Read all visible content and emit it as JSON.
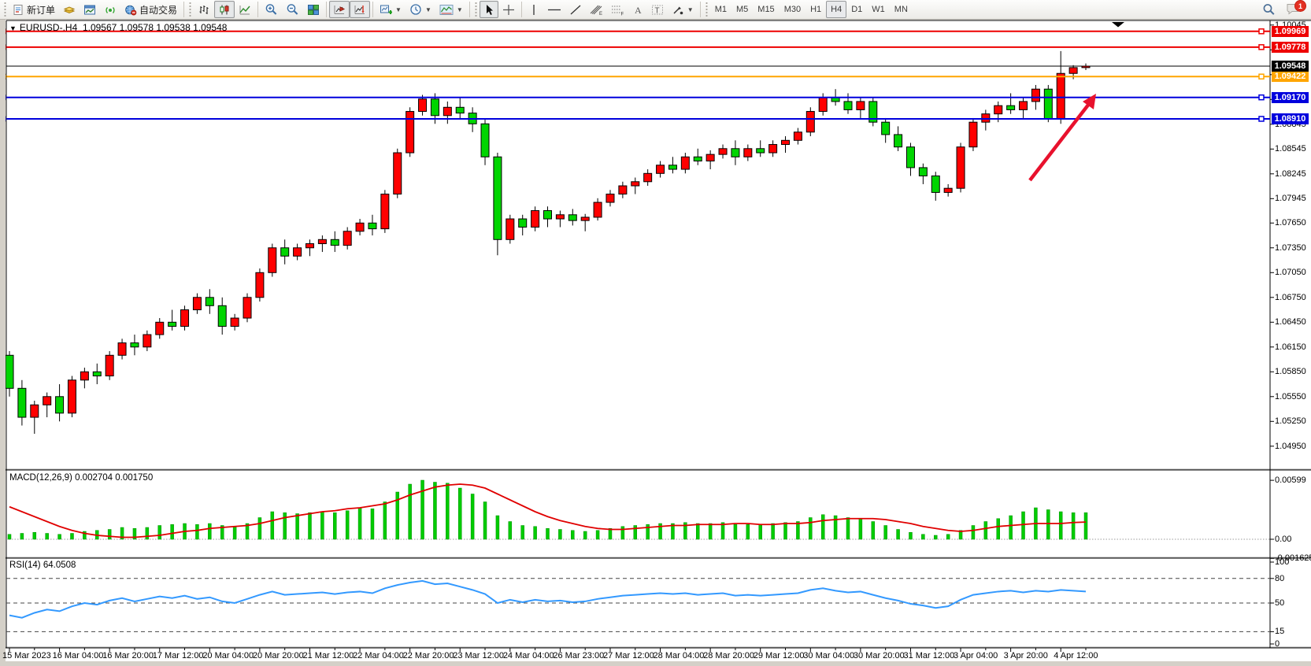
{
  "toolbar": {
    "new_order": "新订单",
    "auto_trading": "自动交易",
    "timeframes": [
      "M1",
      "M5",
      "M15",
      "M30",
      "H1",
      "H4",
      "D1",
      "W1",
      "MN"
    ],
    "active_timeframe": "H4",
    "notification_badge": "1"
  },
  "chart": {
    "symbol_period": "EURUSD-.H4",
    "ohlc_text": "1.09567 1.09578 1.09538 1.09548",
    "current_price": "1.09548",
    "current_price_color": "#000000",
    "horizontal_lines": [
      {
        "price": "1.09969",
        "color": "#ee0000"
      },
      {
        "price": "1.09778",
        "color": "#ee0000"
      },
      {
        "price": "1.09422",
        "color": "#ffa500"
      },
      {
        "price": "1.09170",
        "color": "#0000dd"
      },
      {
        "price": "1.08910",
        "color": "#0000dd"
      }
    ],
    "annotation_arrow_color": "#e8112d"
  },
  "chart_data": {
    "type": "candlestick",
    "title": "EURUSD- H4 with MACD and RSI",
    "colors": {
      "bull": "#ff0000",
      "bear": "#00d500",
      "wick": "#000000",
      "macd_histogram": "#00cc00",
      "macd_signal": "#e00000",
      "rsi_line": "#3399ff"
    },
    "price_axis_ticks": [
      "1.10045",
      "1.09745",
      "1.09445",
      "1.09145",
      "1.08845",
      "1.08545",
      "1.08245",
      "1.07945",
      "1.07650",
      "1.07350",
      "1.07050",
      "1.06750",
      "1.06450",
      "1.06150",
      "1.05850",
      "1.05550",
      "1.05250",
      "1.04950"
    ],
    "time_axis_labels": [
      "15 Mar 2023",
      "16 Mar 04:00",
      "16 Mar 20:00",
      "17 Mar 12:00",
      "20 Mar 04:00",
      "20 Mar 20:00",
      "21 Mar 12:00",
      "22 Mar 04:00",
      "22 Mar 20:00",
      "23 Mar 12:00",
      "24 Mar 04:00",
      "26 Mar 23:00",
      "27 Mar 12:00",
      "28 Mar 04:00",
      "28 Mar 20:00",
      "29 Mar 12:00",
      "30 Mar 04:00",
      "30 Mar 20:00",
      "31 Mar 12:00",
      "3 Apr 04:00",
      "3 Apr 20:00",
      "4 Apr 12:00"
    ],
    "candles": [
      [
        1.0605,
        1.061,
        1.0555,
        1.0565
      ],
      [
        1.0565,
        1.0575,
        1.052,
        1.053
      ],
      [
        1.053,
        1.055,
        1.051,
        1.0545
      ],
      [
        1.0545,
        1.056,
        1.053,
        1.0555
      ],
      [
        1.0555,
        1.057,
        1.0525,
        1.0535
      ],
      [
        1.0535,
        1.058,
        1.053,
        1.0575
      ],
      [
        1.0575,
        1.059,
        1.0565,
        1.0585
      ],
      [
        1.0585,
        1.0595,
        1.057,
        1.058
      ],
      [
        1.058,
        1.061,
        1.0575,
        1.0605
      ],
      [
        1.0605,
        1.0625,
        1.06,
        1.062
      ],
      [
        1.062,
        1.063,
        1.0605,
        1.0615
      ],
      [
        1.0615,
        1.0635,
        1.061,
        1.063
      ],
      [
        1.063,
        1.065,
        1.0625,
        1.0645
      ],
      [
        1.0645,
        1.066,
        1.0635,
        1.064
      ],
      [
        1.064,
        1.0665,
        1.0635,
        1.066
      ],
      [
        1.066,
        1.068,
        1.0655,
        1.0675
      ],
      [
        1.0675,
        1.0685,
        1.0655,
        1.0665
      ],
      [
        1.0665,
        1.0675,
        1.063,
        1.064
      ],
      [
        1.064,
        1.0655,
        1.0635,
        1.065
      ],
      [
        1.065,
        1.068,
        1.0645,
        1.0675
      ],
      [
        1.0675,
        1.071,
        1.067,
        1.0705
      ],
      [
        1.0705,
        1.074,
        1.07,
        1.0735
      ],
      [
        1.0735,
        1.0745,
        1.0715,
        1.0725
      ],
      [
        1.0725,
        1.074,
        1.072,
        1.0735
      ],
      [
        1.0735,
        1.0745,
        1.0725,
        1.074
      ],
      [
        1.074,
        1.075,
        1.073,
        1.0745
      ],
      [
        1.0745,
        1.0755,
        1.073,
        1.0738
      ],
      [
        1.0738,
        1.076,
        1.0733,
        1.0755
      ],
      [
        1.0755,
        1.077,
        1.075,
        1.0765
      ],
      [
        1.0765,
        1.0775,
        1.075,
        1.0758
      ],
      [
        1.0758,
        1.0805,
        1.0753,
        1.08
      ],
      [
        1.08,
        1.0855,
        1.0795,
        1.085
      ],
      [
        1.085,
        1.0905,
        1.0845,
        1.09
      ],
      [
        1.09,
        1.092,
        1.0895,
        1.0915
      ],
      [
        1.0915,
        1.0922,
        1.0885,
        1.0895
      ],
      [
        1.0895,
        1.0912,
        1.0885,
        1.0905
      ],
      [
        1.0905,
        1.0917,
        1.089,
        1.0898
      ],
      [
        1.0898,
        1.0905,
        1.0875,
        1.0885
      ],
      [
        1.0885,
        1.089,
        1.0835,
        1.0845
      ],
      [
        1.0845,
        1.085,
        1.0726,
        1.0745
      ],
      [
        1.0745,
        1.0775,
        1.074,
        1.077
      ],
      [
        1.077,
        1.0775,
        1.075,
        1.076
      ],
      [
        1.076,
        1.0785,
        1.0755,
        1.078
      ],
      [
        1.078,
        1.0785,
        1.076,
        1.077
      ],
      [
        1.077,
        1.078,
        1.076,
        1.0775
      ],
      [
        1.0775,
        1.0782,
        1.0762,
        1.0768
      ],
      [
        1.0768,
        1.0776,
        1.0755,
        1.0772
      ],
      [
        1.0772,
        1.0795,
        1.0768,
        1.079
      ],
      [
        1.079,
        1.0805,
        1.0785,
        1.08
      ],
      [
        1.08,
        1.0815,
        1.0795,
        1.081
      ],
      [
        1.081,
        1.082,
        1.08,
        1.0815
      ],
      [
        1.0815,
        1.083,
        1.081,
        1.0825
      ],
      [
        1.0825,
        1.084,
        1.082,
        1.0835
      ],
      [
        1.0835,
        1.0845,
        1.0825,
        1.083
      ],
      [
        1.083,
        1.085,
        1.0825,
        1.0845
      ],
      [
        1.0845,
        1.0855,
        1.0835,
        1.084
      ],
      [
        1.084,
        1.0853,
        1.083,
        1.0848
      ],
      [
        1.0848,
        1.086,
        1.0843,
        1.0855
      ],
      [
        1.0855,
        1.0865,
        1.0835,
        1.0845
      ],
      [
        1.0845,
        1.086,
        1.084,
        1.0855
      ],
      [
        1.0855,
        1.0865,
        1.0845,
        1.085
      ],
      [
        1.085,
        1.0865,
        1.0845,
        1.086
      ],
      [
        1.086,
        1.087,
        1.085,
        1.0865
      ],
      [
        1.0865,
        1.088,
        1.086,
        1.0875
      ],
      [
        1.0875,
        1.0905,
        1.087,
        1.09
      ],
      [
        1.09,
        1.0922,
        1.0895,
        1.0917
      ],
      [
        1.0917,
        1.0927,
        1.0907,
        1.0912
      ],
      [
        1.0912,
        1.0922,
        1.0897,
        1.0902
      ],
      [
        1.0902,
        1.0917,
        1.0892,
        1.0912
      ],
      [
        1.0912,
        1.0917,
        1.0882,
        1.0887
      ],
      [
        1.0887,
        1.0892,
        1.0862,
        1.0872
      ],
      [
        1.0872,
        1.0882,
        1.0852,
        1.0857
      ],
      [
        1.0857,
        1.0862,
        1.0822,
        1.0832
      ],
      [
        1.0832,
        1.0837,
        1.0812,
        1.0822
      ],
      [
        1.0822,
        1.0827,
        1.0792,
        1.0802
      ],
      [
        1.0802,
        1.0812,
        1.0797,
        1.0807
      ],
      [
        1.0807,
        1.0862,
        1.0802,
        1.0857
      ],
      [
        1.0857,
        1.0892,
        1.0852,
        1.0887
      ],
      [
        1.0887,
        1.0902,
        1.0877,
        1.0897
      ],
      [
        1.0897,
        1.0912,
        1.0887,
        1.0907
      ],
      [
        1.0907,
        1.0922,
        1.0897,
        1.0902
      ],
      [
        1.0902,
        1.0917,
        1.0892,
        1.0912
      ],
      [
        1.0912,
        1.0932,
        1.0902,
        1.0927
      ],
      [
        1.0927,
        1.0932,
        1.0887,
        1.0891
      ],
      [
        1.0891,
        1.0973,
        1.0885,
        1.0946
      ],
      [
        1.0946,
        1.0956,
        1.0939,
        1.0953
      ],
      [
        1.0953,
        1.0958,
        1.095,
        1.09548
      ]
    ],
    "macd": {
      "label": "MACD(12,26,9)",
      "values_text": "0.002704 0.001750",
      "axis_labels": [
        "0.00599",
        "0.00",
        "-0.001625"
      ],
      "histogram": [
        0.0005,
        0.0006,
        0.0007,
        0.0006,
        0.0005,
        0.0006,
        0.0008,
        0.0009,
        0.001,
        0.0012,
        0.0011,
        0.0012,
        0.0014,
        0.0015,
        0.0016,
        0.0015,
        0.0016,
        0.0014,
        0.0013,
        0.0016,
        0.0022,
        0.0028,
        0.0027,
        0.0026,
        0.0027,
        0.0028,
        0.0027,
        0.0029,
        0.0032,
        0.0031,
        0.0038,
        0.0048,
        0.0056,
        0.006,
        0.0058,
        0.0057,
        0.0052,
        0.0046,
        0.0038,
        0.0024,
        0.0018,
        0.0014,
        0.0013,
        0.0011,
        0.001,
        0.0009,
        0.0008,
        0.0009,
        0.0011,
        0.0013,
        0.0014,
        0.0015,
        0.0016,
        0.0016,
        0.0017,
        0.0016,
        0.0016,
        0.0017,
        0.0015,
        0.0015,
        0.0015,
        0.0016,
        0.0017,
        0.0018,
        0.0022,
        0.0025,
        0.0024,
        0.0022,
        0.0021,
        0.0018,
        0.0014,
        0.001,
        0.0007,
        0.0005,
        0.0004,
        0.0005,
        0.0009,
        0.0014,
        0.0018,
        0.0021,
        0.0024,
        0.0028,
        0.0032,
        0.003,
        0.0028,
        0.0027,
        0.002704
      ],
      "signal": [
        0.0033,
        0.0028,
        0.0023,
        0.0018,
        0.0013,
        0.0009,
        0.0006,
        0.0004,
        0.0003,
        0.0002,
        0.0002,
        0.0003,
        0.0004,
        0.0006,
        0.0008,
        0.0009,
        0.0011,
        0.0012,
        0.0013,
        0.0014,
        0.0016,
        0.0019,
        0.0022,
        0.0024,
        0.0026,
        0.0028,
        0.0029,
        0.0031,
        0.0032,
        0.0034,
        0.0036,
        0.004,
        0.0045,
        0.0049,
        0.0053,
        0.0055,
        0.0056,
        0.0055,
        0.0052,
        0.0046,
        0.004,
        0.0034,
        0.0028,
        0.0023,
        0.0019,
        0.0016,
        0.0013,
        0.0011,
        0.001,
        0.001,
        0.0011,
        0.0012,
        0.0013,
        0.0014,
        0.0014,
        0.0015,
        0.0015,
        0.0015,
        0.0016,
        0.0016,
        0.0015,
        0.0015,
        0.0016,
        0.0016,
        0.0017,
        0.0019,
        0.002,
        0.0021,
        0.0021,
        0.0021,
        0.002,
        0.0018,
        0.0016,
        0.0013,
        0.0011,
        0.0009,
        0.0008,
        0.0009,
        0.0011,
        0.0013,
        0.0014,
        0.0015,
        0.0016,
        0.0016,
        0.0016,
        0.0017,
        0.00175
      ]
    },
    "rsi": {
      "label": "RSI(14)",
      "value_text": "64.0508",
      "axis_labels": [
        "100",
        "80",
        "50",
        "15",
        "0"
      ],
      "level_lines": [
        80,
        50,
        15
      ],
      "series": [
        35,
        32,
        38,
        42,
        40,
        46,
        50,
        48,
        53,
        56,
        52,
        55,
        58,
        56,
        59,
        55,
        57,
        52,
        50,
        55,
        60,
        64,
        60,
        61,
        62,
        63,
        61,
        63,
        64,
        62,
        68,
        72,
        75,
        77,
        73,
        74,
        70,
        66,
        61,
        50,
        54,
        51,
        54,
        52,
        53,
        51,
        52,
        55,
        57,
        59,
        60,
        61,
        62,
        61,
        62,
        60,
        61,
        62,
        59,
        60,
        59,
        60,
        61,
        62,
        66,
        68,
        65,
        63,
        64,
        60,
        56,
        53,
        49,
        47,
        44,
        46,
        54,
        60,
        62,
        64,
        65,
        63,
        65,
        64,
        66,
        65,
        64.05
      ]
    }
  }
}
